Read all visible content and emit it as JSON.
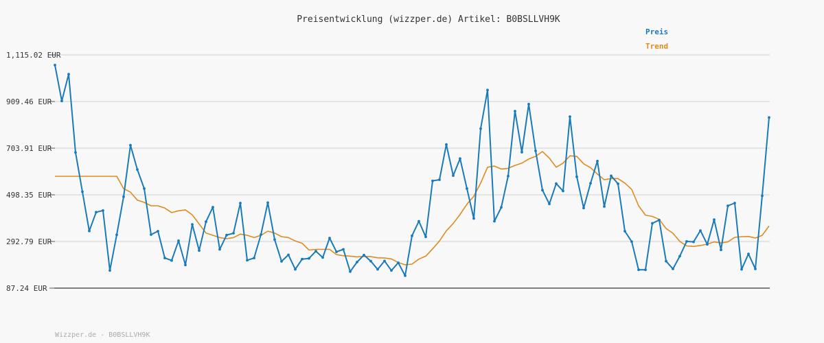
{
  "chart_data": {
    "type": "line",
    "title": "Preisentwicklung (wizzper.de) Artikel: B0BSLLVH9K",
    "footer": "Wizzper.de - B0BSLLVH9K",
    "y_tick_labels": [
      "1,115.02 EUR",
      "909.46 EUR",
      "703.91 EUR",
      "498.35 EUR",
      "292.79 EUR",
      "87.24 EUR"
    ],
    "y_ticks": [
      1115.02,
      909.46,
      703.91,
      498.35,
      292.79,
      87.24
    ],
    "ylim": [
      87.24,
      1115.02
    ],
    "grid": true,
    "legend_position": "top-right",
    "series": [
      {
        "name": "Preis",
        "color": "#1a7ab8",
        "values": [
          1070,
          912,
          1030,
          685,
          512,
          339,
          422,
          429,
          165,
          322,
          490,
          717,
          610,
          526,
          323,
          338,
          220,
          209,
          296,
          189,
          368,
          253,
          380,
          444,
          258,
          321,
          329,
          462,
          210,
          220,
          323,
          464,
          301,
          205,
          234,
          170,
          215,
          218,
          250,
          222,
          308,
          247,
          258,
          160,
          202,
          233,
          206,
          170,
          207,
          165,
          199,
          142,
          318,
          382,
          313,
          560,
          565,
          720,
          583,
          658,
          526,
          394,
          790,
          960,
          382,
          443,
          581,
          867,
          686,
          898,
          692,
          519,
          458,
          548,
          515,
          843,
          578,
          440,
          549,
          647,
          447,
          582,
          547,
          338,
          292,
          168,
          168,
          373,
          387,
          206,
          172,
          228,
          293,
          291,
          341,
          280,
          389,
          256,
          450,
          462,
          170,
          238,
          172,
          494,
          839
        ],
        "markers": true
      },
      {
        "name": "Trend",
        "color": "#e08a1e",
        "values": [
          580,
          580,
          580,
          580,
          580,
          580,
          580,
          580,
          580,
          580,
          526,
          510,
          475,
          465,
          450,
          450,
          440,
          420,
          428,
          432,
          410,
          370,
          330,
          320,
          310,
          305,
          310,
          325,
          320,
          310,
          320,
          338,
          330,
          314,
          310,
          295,
          285,
          255,
          258,
          258,
          258,
          235,
          230,
          228,
          225,
          227,
          226,
          221,
          220,
          216,
          200,
          190,
          193,
          215,
          228,
          260,
          295,
          340,
          372,
          412,
          457,
          492,
          550,
          620,
          625,
          612,
          615,
          628,
          638,
          656,
          668,
          689,
          660,
          620,
          638,
          670,
          668,
          635,
          618,
          590,
          565,
          570,
          570,
          550,
          522,
          450,
          409,
          403,
          390,
          350,
          329,
          293,
          273,
          271,
          275,
          281,
          291,
          286,
          291,
          311,
          314,
          315,
          308,
          320,
          361
        ]
      }
    ]
  }
}
